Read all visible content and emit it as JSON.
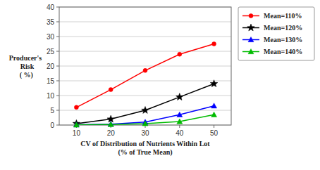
{
  "chart_data": {
    "type": "line",
    "x": [
      10,
      20,
      30,
      40,
      50
    ],
    "series": [
      {
        "name": "Mean=110%",
        "color": "#ff0000",
        "marker": "circle",
        "values": [
          6.0,
          12.0,
          18.5,
          24.0,
          27.5
        ]
      },
      {
        "name": "Mean=120%",
        "color": "#000000",
        "marker": "star",
        "values": [
          0.5,
          2.0,
          5.0,
          9.5,
          14.0
        ]
      },
      {
        "name": "Mean=130%",
        "color": "#0000ff",
        "marker": "triangle",
        "values": [
          0.1,
          0.3,
          1.0,
          3.5,
          6.5
        ]
      },
      {
        "name": "Mean=140%",
        "color": "#00bb00",
        "marker": "triangle",
        "values": [
          0.05,
          0.2,
          0.5,
          1.2,
          3.5
        ]
      }
    ],
    "x_label": "CV of Distribution of Nutrients Within Lot\n(% of True Mean)",
    "y_label": "Producer's\n  Risk\n ( %)",
    "xlim": [
      5,
      55
    ],
    "xticks": [
      10,
      20,
      30,
      40,
      50
    ],
    "ylim": [
      0,
      40
    ],
    "yticks": [
      0,
      5,
      10,
      15,
      20,
      25,
      30,
      35,
      40
    ],
    "grid": true,
    "legend": "right"
  }
}
